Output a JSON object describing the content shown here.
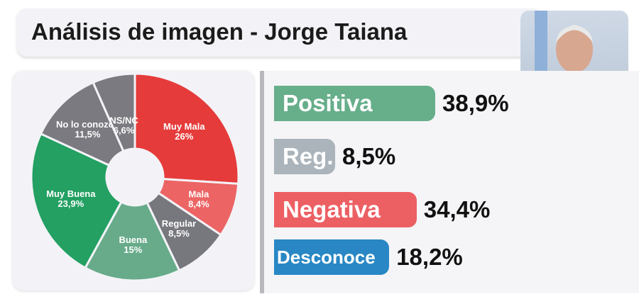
{
  "title": "Análisis de imagen - Jorge Taiana",
  "chart_data": [
    {
      "type": "pie",
      "donut": true,
      "categories": [
        "Muy Mala",
        "Mala",
        "Regular",
        "Buena",
        "Muy Buena",
        "No lo conozco",
        "NS/NC"
      ],
      "labels": [
        "26%",
        "8,4%",
        "8,5%",
        "15%",
        "23,9%",
        "11,5%",
        "6,6%"
      ],
      "values": [
        26,
        8.4,
        8.5,
        15,
        23.9,
        11.5,
        6.6
      ],
      "colors": [
        "#e63b3b",
        "#ec6464",
        "#77777e",
        "#67ab8a",
        "#23a062",
        "#7a7a80",
        "#7a7a80"
      ]
    },
    {
      "type": "bar",
      "orientation": "horizontal",
      "categories": [
        "Positiva",
        "Reg.",
        "Negativa",
        "Desconoce"
      ],
      "values": [
        38.9,
        8.5,
        34.4,
        18.2
      ],
      "labels": [
        "38,9%",
        "8,5%",
        "34,4%",
        "18,2%"
      ],
      "colors": [
        "#67ae8a",
        "#aab4ba",
        "#ec5f63",
        "#2887c4"
      ]
    }
  ]
}
